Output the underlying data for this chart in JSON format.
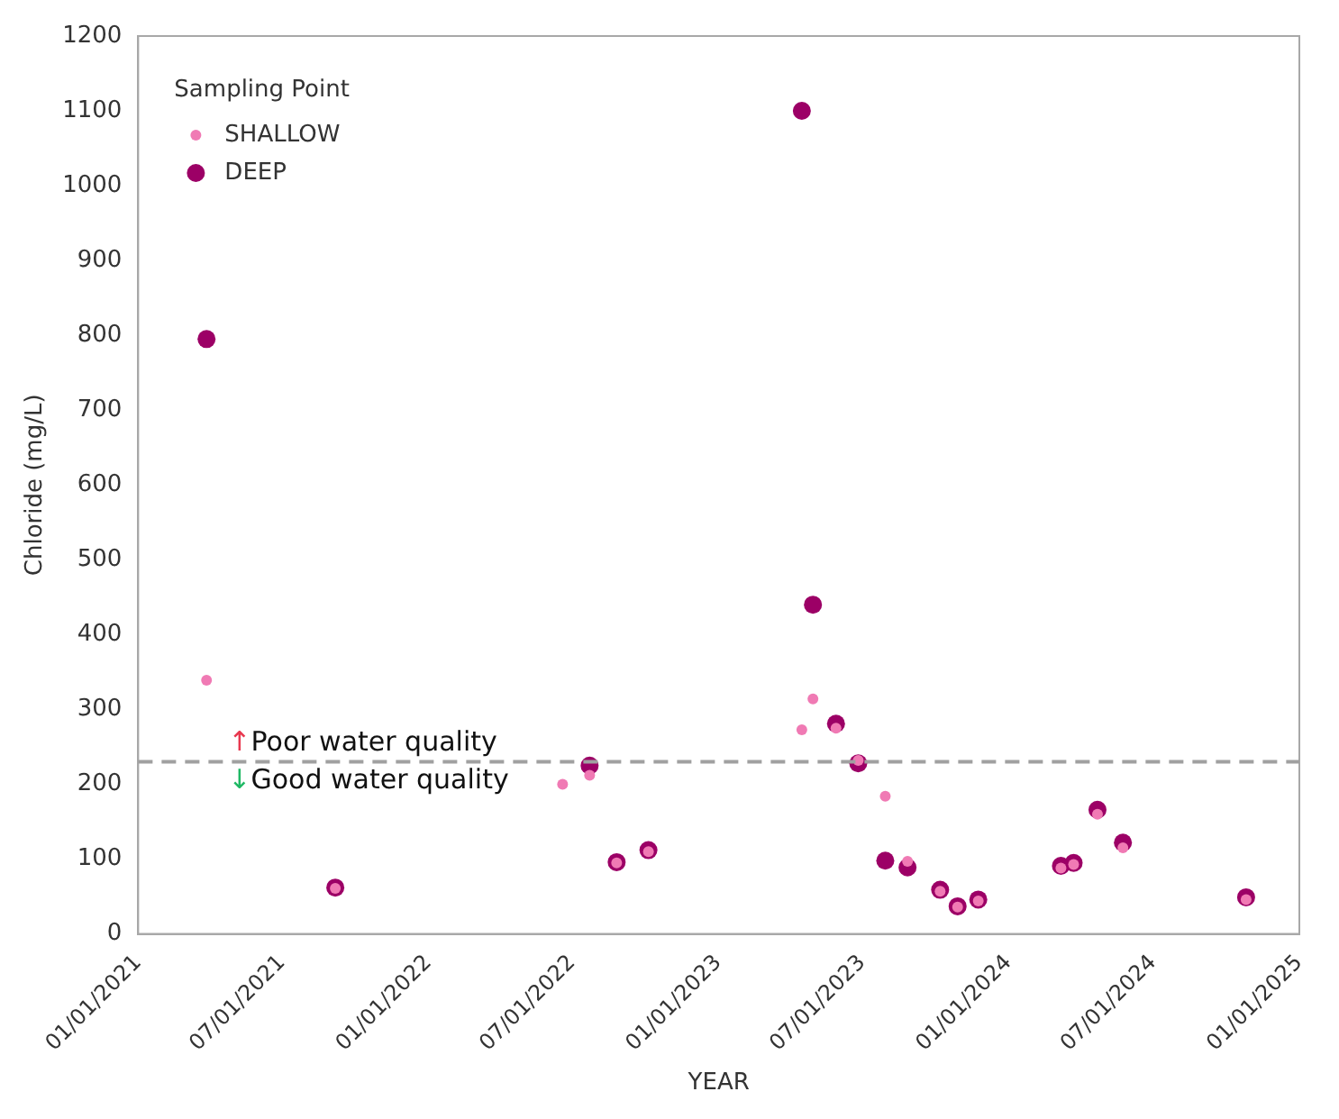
{
  "chart_data": {
    "type": "scatter",
    "xlabel": "YEAR",
    "ylabel": "Chloride (mg/L)",
    "legend_title": "Sampling Point",
    "legend": "top left",
    "grid": false,
    "marker": "circle",
    "xlim": [
      "2021-01-01",
      "2025-01-01"
    ],
    "xticks": [
      {
        "value": "2021-01-01",
        "label": "01/01/2021"
      },
      {
        "value": "2021-07-01",
        "label": "07/01/2021"
      },
      {
        "value": "2022-01-01",
        "label": "01/01/2022"
      },
      {
        "value": "2022-07-01",
        "label": "07/01/2022"
      },
      {
        "value": "2023-01-01",
        "label": "01/01/2023"
      },
      {
        "value": "2023-07-01",
        "label": "07/01/2023"
      },
      {
        "value": "2024-01-01",
        "label": "01/01/2024"
      },
      {
        "value": "2024-07-01",
        "label": "07/01/2024"
      },
      {
        "value": "2025-01-01",
        "label": "01/01/2025"
      }
    ],
    "ylim": [
      0,
      1200
    ],
    "yticks": [
      0,
      100,
      200,
      300,
      400,
      500,
      600,
      700,
      800,
      900,
      1000,
      1100,
      1200
    ],
    "series": [
      {
        "name": "SHALLOW",
        "color": "#f07ab4",
        "x": [
          "2021-03-28",
          "2021-09-06",
          "2022-06-19",
          "2022-07-23",
          "2022-08-26",
          "2022-10-05",
          "2023-04-16",
          "2023-04-30",
          "2023-05-29",
          "2023-06-26",
          "2023-07-30",
          "2023-08-27",
          "2023-10-07",
          "2023-10-29",
          "2023-11-24",
          "2024-03-07",
          "2024-03-23",
          "2024-04-22",
          "2024-05-24",
          "2024-10-26"
        ],
        "values": [
          339,
          61,
          200,
          212,
          95,
          110,
          273,
          314,
          275,
          232,
          184,
          97,
          57,
          36,
          44,
          88,
          93,
          160,
          115,
          46
        ]
      },
      {
        "name": "DEEP",
        "color": "#9c0066",
        "x": [
          "2021-03-28",
          "2021-09-06",
          "2022-07-23",
          "2022-08-26",
          "2022-10-05",
          "2023-04-16",
          "2023-04-30",
          "2023-05-29",
          "2023-06-26",
          "2023-07-30",
          "2023-08-27",
          "2023-10-07",
          "2023-10-29",
          "2023-11-24",
          "2024-03-07",
          "2024-03-23",
          "2024-04-22",
          "2024-05-24",
          "2024-10-26"
        ],
        "values": [
          795,
          62,
          225,
          96,
          112,
          1100,
          440,
          281,
          228,
          98,
          89,
          59,
          37,
          46,
          91,
          95,
          166,
          122,
          49
        ]
      }
    ],
    "ref_lines": [
      {
        "axis": "y",
        "value": 230,
        "color": "#a0a0a0",
        "line_style": "dashed"
      }
    ],
    "annotations": [
      "↑Poor water quality",
      "↓Good water quality"
    ]
  }
}
